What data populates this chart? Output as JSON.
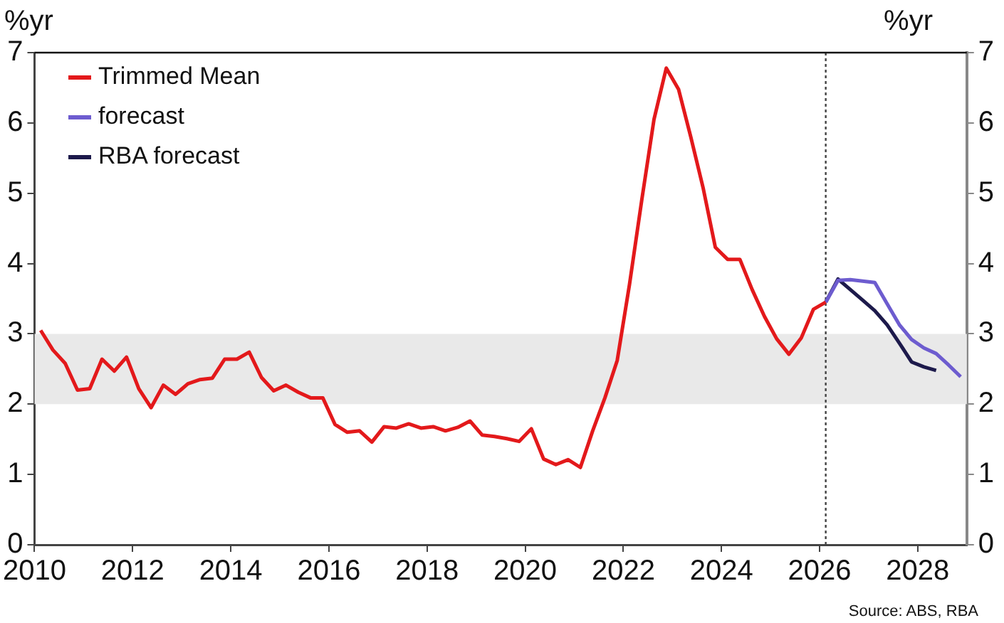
{
  "chart_data": {
    "type": "line",
    "ylabel": "%yr",
    "y2label": "%yr",
    "xlim": [
      2010,
      2029
    ],
    "xticks": [
      2010,
      2012,
      2014,
      2016,
      2018,
      2020,
      2022,
      2024,
      2026,
      2028
    ],
    "ylim": [
      0,
      7
    ],
    "yticks": [
      0,
      1,
      2,
      3,
      4,
      5,
      6,
      7
    ],
    "y2lim": [
      0,
      7
    ],
    "y2ticks": [
      0,
      1,
      2,
      3,
      4,
      5,
      6,
      7
    ],
    "series": [
      {
        "name": "Trimmed Mean",
        "color": "#e3191b",
        "x": [
          2010.125,
          2010.375,
          2010.625,
          2010.875,
          2011.125,
          2011.375,
          2011.625,
          2011.875,
          2012.125,
          2012.375,
          2012.625,
          2012.875,
          2013.125,
          2013.375,
          2013.625,
          2013.875,
          2014.125,
          2014.375,
          2014.625,
          2014.875,
          2015.125,
          2015.375,
          2015.625,
          2015.875,
          2016.125,
          2016.375,
          2016.625,
          2016.875,
          2017.125,
          2017.375,
          2017.625,
          2017.875,
          2018.125,
          2018.375,
          2018.625,
          2018.875,
          2019.125,
          2019.375,
          2019.625,
          2019.875,
          2020.125,
          2020.375,
          2020.625,
          2020.875,
          2021.125,
          2021.375,
          2021.625,
          2021.875,
          2022.125,
          2022.375,
          2022.625,
          2022.875,
          2023.125,
          2023.375,
          2023.625,
          2023.875,
          2024.125,
          2024.375,
          2024.625,
          2024.875,
          2025.125,
          2025.375,
          2025.625,
          2025.875,
          2026.125
        ],
        "values": [
          3.05,
          2.77,
          2.58,
          2.2,
          2.22,
          2.64,
          2.47,
          2.67,
          2.22,
          1.95,
          2.27,
          2.14,
          2.29,
          2.35,
          2.37,
          2.64,
          2.64,
          2.74,
          2.38,
          2.19,
          2.27,
          2.17,
          2.09,
          2.09,
          1.71,
          1.6,
          1.62,
          1.46,
          1.68,
          1.66,
          1.72,
          1.66,
          1.68,
          1.62,
          1.67,
          1.76,
          1.56,
          1.54,
          1.51,
          1.47,
          1.65,
          1.22,
          1.14,
          1.21,
          1.1,
          1.62,
          2.09,
          2.62,
          3.7,
          4.9,
          6.05,
          6.78,
          6.48,
          5.8,
          5.08,
          4.23,
          4.06,
          4.06,
          3.63,
          3.25,
          2.93,
          2.71,
          2.94,
          3.35,
          3.45
        ]
      },
      {
        "name": "forecast",
        "color": "#6d5ccf",
        "x": [
          2026.125,
          2026.375,
          2026.625,
          2026.875,
          2027.125,
          2027.375,
          2027.625,
          2027.875,
          2028.125,
          2028.375,
          2028.625,
          2028.875
        ],
        "values": [
          3.45,
          3.76,
          3.77,
          3.75,
          3.73,
          3.43,
          3.13,
          2.92,
          2.8,
          2.72,
          2.56,
          2.39
        ]
      },
      {
        "name": "RBA forecast",
        "color": "#1d1a4b",
        "x": [
          2026.125,
          2026.375,
          2026.625,
          2026.875,
          2027.125,
          2027.375,
          2027.625,
          2027.875,
          2028.125,
          2028.375
        ],
        "values": [
          3.45,
          3.78,
          3.63,
          3.48,
          3.33,
          3.13,
          2.87,
          2.6,
          2.53,
          2.48
        ]
      }
    ],
    "bands": [
      {
        "axis": "y",
        "from": 2,
        "to": 3,
        "color": "#e9e9e9"
      }
    ],
    "ref_lines": [
      {
        "axis": "x",
        "value": 2026.125,
        "color": "#444444",
        "line_style": "dotted"
      }
    ],
    "legend": "top left",
    "grid": false,
    "marker": "none",
    "line_style": "solid",
    "annotations": [
      "Source: ABS, RBA"
    ]
  }
}
